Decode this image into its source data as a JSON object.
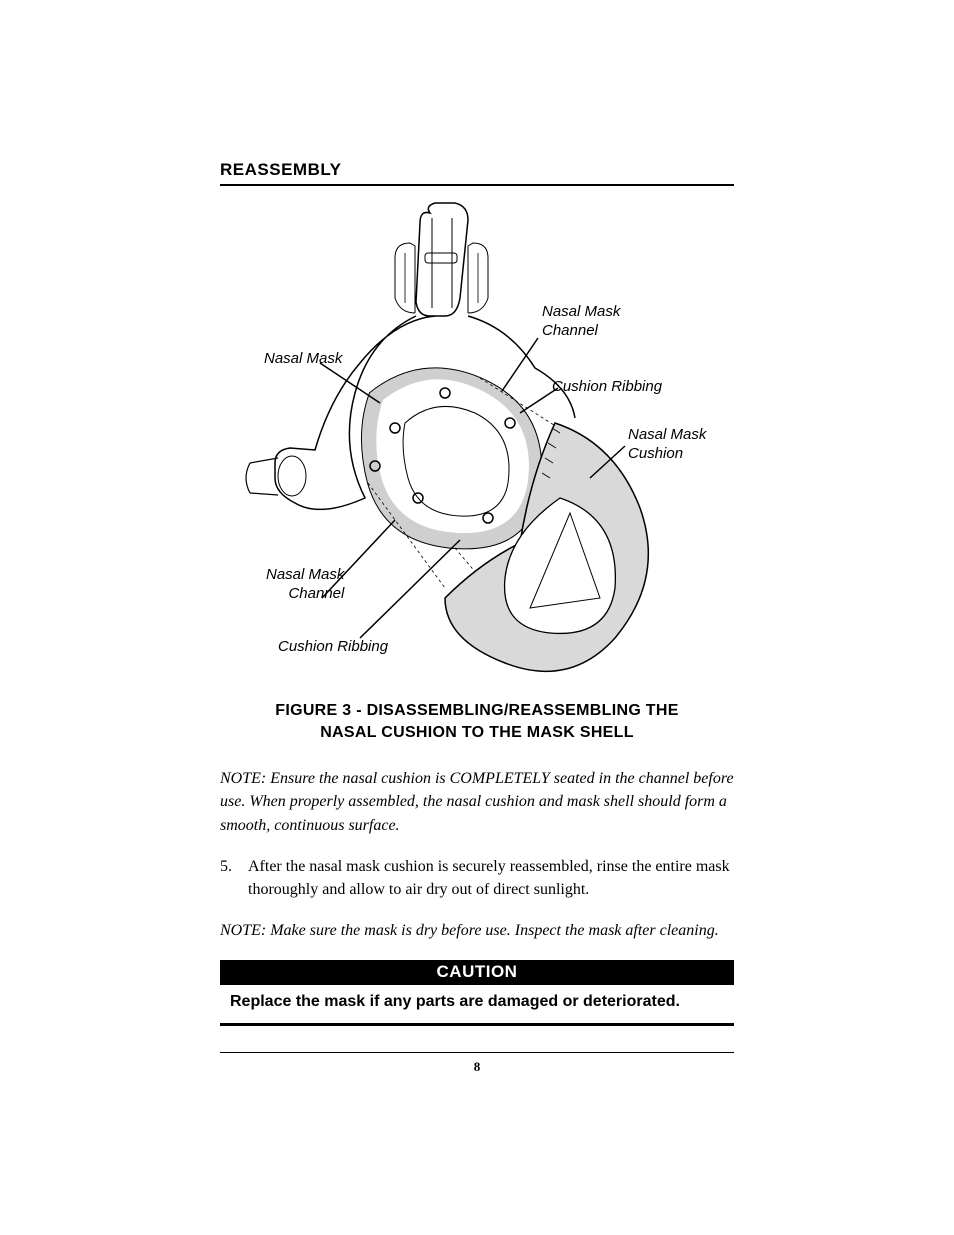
{
  "section_heading": "REASSEMBLY",
  "figure": {
    "callouts": {
      "nasal_mask": "Nasal Mask",
      "channel_top": "Nasal Mask\nChannel",
      "ribbing_top": "Cushion  Ribbing",
      "cushion_right": "Nasal Mask\nCushion",
      "channel_bottom": "Nasal Mask\nChannel",
      "ribbing_bottom": "Cushion  Ribbing"
    },
    "caption_l1": "FIGURE 3 - DISASSEMBLING/REASSEMBLING THE",
    "caption_l2": "NASAL CUSHION TO THE MASK SHELL",
    "svg": {
      "stroke": "#000000",
      "fill": "#ffffff",
      "cushion_shade": "#cccccc"
    }
  },
  "note1": "NOTE: Ensure the nasal cushion is COMPLETELY seated in the channel before use. When properly assembled, the nasal cushion and mask shell should form a smooth, continuous surface.",
  "step": {
    "num": "5.",
    "text": "After the nasal mask cushion is securely reassembled, rinse the entire mask thoroughly and allow to air dry out of direct sunlight."
  },
  "note2": "NOTE:  Make sure the mask is dry before use. Inspect the mask after cleaning.",
  "caution": {
    "header": "CAUTION",
    "body": "Replace the mask if any parts are damaged or deteriorated."
  },
  "page_number": "8"
}
